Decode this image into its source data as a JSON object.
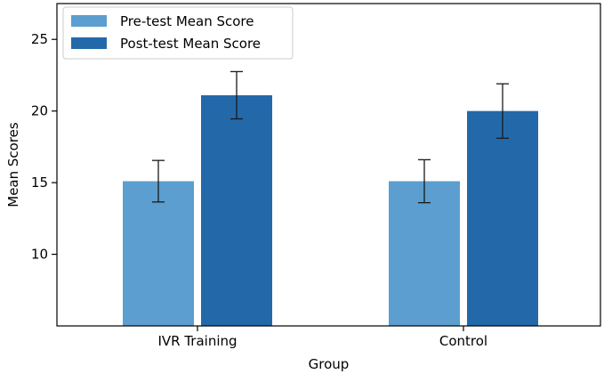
{
  "chart_data": {
    "type": "bar",
    "categories": [
      "IVR Training",
      "Control"
    ],
    "series": [
      {
        "name": "Pre-test Mean Score",
        "values": [
          15.1,
          15.1
        ],
        "errors": [
          1.45,
          1.5
        ],
        "color": "#5b9ecf"
      },
      {
        "name": "Post-test Mean Score",
        "values": [
          21.1,
          20.0
        ],
        "errors": [
          1.65,
          1.9
        ],
        "color": "#2369aa"
      }
    ],
    "xlabel": "Group",
    "ylabel": "Mean Scores",
    "ylim": [
      5,
      27.5
    ],
    "yticks": [
      10,
      15,
      20,
      25
    ],
    "legend_position": "top-left",
    "grid": false
  }
}
